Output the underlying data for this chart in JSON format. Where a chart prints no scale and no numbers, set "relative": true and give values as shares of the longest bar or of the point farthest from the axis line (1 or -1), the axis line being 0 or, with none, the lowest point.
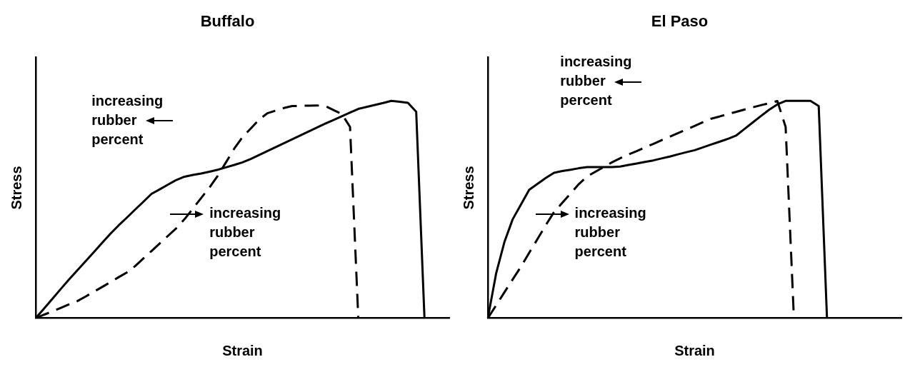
{
  "chart_data": [
    {
      "type": "line",
      "title": "Buffalo",
      "xlabel": "Strain",
      "ylabel": "Stress",
      "relative": true,
      "legend": false,
      "grid": false,
      "marker": "none",
      "annotations": [
        "increasing rubber percent",
        "increasing rubber percent"
      ],
      "categories": [
        null,
        null,
        null,
        null,
        null,
        null,
        null,
        null,
        null,
        null,
        null,
        null,
        null,
        null,
        null,
        null,
        null,
        null,
        null,
        null,
        null,
        null,
        null,
        null,
        null,
        null,
        null,
        null,
        null,
        null,
        null,
        null,
        null,
        null,
        null,
        null,
        null,
        null,
        null,
        null,
        null,
        null,
        null,
        null,
        null,
        null,
        null,
        null,
        null,
        null,
        null
      ],
      "series": [
        {
          "color": "#000000",
          "line_style": "solid",
          "values": [
            0,
            0.044,
            0.088,
            0.133,
            0.177,
            0.219,
            0.261,
            0.303,
            0.345,
            0.387,
            0.426,
            0.462,
            0.499,
            0.535,
            0.572,
            0.593,
            0.615,
            0.636,
            0.651,
            0.659,
            0.666,
            0.674,
            0.683,
            0.694,
            0.705,
            0.717,
            0.733,
            0.751,
            0.769,
            0.787,
            0.805,
            0.823,
            0.841,
            0.859,
            0.877,
            0.895,
            0.912,
            0.929,
            0.946,
            0.963,
            0.972,
            0.981,
            0.99,
            1,
            0.996,
            0.991,
            0.95,
            0,
            null,
            null,
            null
          ]
        },
        {
          "color": "#000000",
          "line_style": "dashed",
          "values": [
            0,
            0.016,
            0.031,
            0.047,
            0.063,
            0.078,
            0.099,
            0.121,
            0.143,
            0.165,
            0.188,
            0.21,
            0.239,
            0.274,
            0.309,
            0.344,
            0.379,
            0.414,
            0.456,
            0.504,
            0.553,
            0.601,
            0.655,
            0.717,
            0.78,
            0.833,
            0.873,
            0.913,
            0.943,
            0.955,
            0.967,
            0.976,
            0.977,
            0.978,
            0.979,
            0.976,
            0.958,
            0.94,
            0.88,
            0,
            null,
            null,
            null,
            null,
            null,
            null,
            null,
            null,
            null,
            null,
            null
          ]
        }
      ]
    },
    {
      "type": "line",
      "title": "El Paso",
      "xlabel": "Strain",
      "ylabel": "Stress",
      "relative": true,
      "legend": false,
      "grid": false,
      "marker": "none",
      "annotations": [
        "increasing rubber percent",
        "increasing rubber percent"
      ],
      "categories": [
        null,
        null,
        null,
        null,
        null,
        null,
        null,
        null,
        null,
        null,
        null,
        null,
        null,
        null,
        null,
        null,
        null,
        null,
        null,
        null,
        null,
        null,
        null,
        null,
        null,
        null,
        null,
        null,
        null,
        null,
        null,
        null,
        null,
        null,
        null,
        null,
        null,
        null,
        null,
        null,
        null,
        null,
        null,
        null,
        null,
        null,
        null,
        null,
        null,
        null,
        null
      ],
      "series": [
        {
          "color": "#000000",
          "line_style": "solid",
          "values": [
            0,
            0.206,
            0.35,
            0.455,
            0.523,
            0.591,
            0.618,
            0.645,
            0.669,
            0.677,
            0.683,
            0.69,
            0.695,
            0.695,
            0.695,
            0.695,
            0.698,
            0.705,
            0.712,
            0.719,
            0.726,
            0.735,
            0.744,
            0.754,
            0.764,
            0.773,
            0.786,
            0.799,
            0.812,
            0.825,
            0.84,
            0.87,
            0.9,
            0.93,
            0.959,
            0.984,
            1,
            1,
            1,
            1,
            0.976,
            0,
            null,
            null,
            null,
            null,
            null,
            null,
            null,
            null,
            null
          ]
        },
        {
          "color": "#000000",
          "line_style": "dashed",
          "values": [
            0,
            0.059,
            0.119,
            0.178,
            0.237,
            0.301,
            0.364,
            0.428,
            0.488,
            0.531,
            0.574,
            0.617,
            0.652,
            0.674,
            0.695,
            0.717,
            0.736,
            0.753,
            0.769,
            0.786,
            0.802,
            0.819,
            0.835,
            0.852,
            0.868,
            0.885,
            0.902,
            0.918,
            0.928,
            0.939,
            0.949,
            0.96,
            0.97,
            0.98,
            0.989,
            0.999,
            0.88,
            0,
            null,
            null,
            null,
            null,
            null,
            null,
            null,
            null,
            null,
            null,
            null,
            null,
            null
          ]
        }
      ]
    }
  ]
}
